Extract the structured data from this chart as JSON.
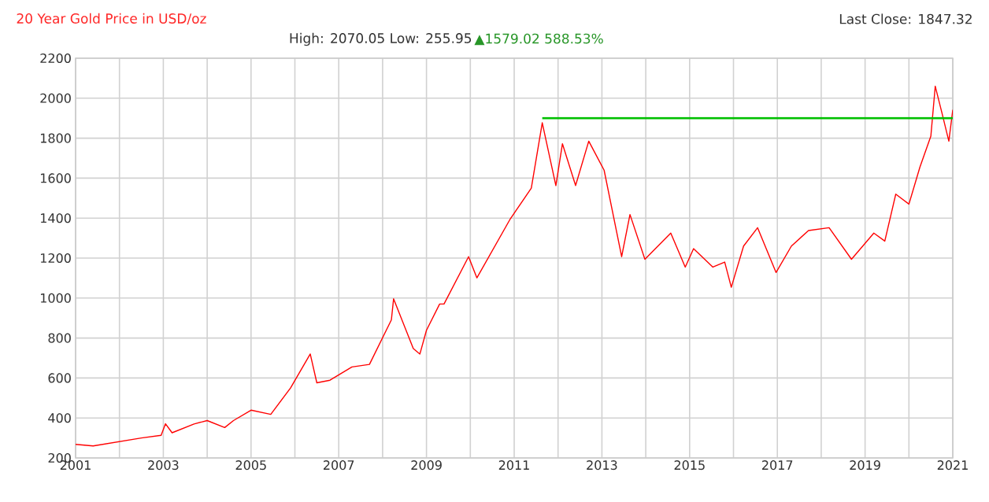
{
  "chart_data": {
    "type": "line",
    "title": "20 Year Gold Price in USD/oz",
    "annotations": [
      "High: 2070.05 Low: 255.95",
      "▲1579.02 588.53%",
      "Last Close: 1847.32"
    ],
    "x": [
      2001.0,
      2001.4,
      2002.5,
      2002.95,
      2003.05,
      2003.2,
      2003.7,
      2004.0,
      2004.4,
      2004.6,
      2005.0,
      2005.45,
      2005.9,
      2006.35,
      2006.5,
      2006.8,
      2007.3,
      2007.7,
      2008.2,
      2008.25,
      2008.7,
      2008.85,
      2009.0,
      2009.3,
      2009.4,
      2009.96,
      2010.15,
      2010.9,
      2011.39,
      2011.64,
      2011.95,
      2012.1,
      2012.4,
      2012.7,
      2013.05,
      2013.45,
      2013.64,
      2013.98,
      2014.57,
      2014.9,
      2015.09,
      2015.53,
      2015.8,
      2015.95,
      2016.23,
      2016.55,
      2016.97,
      2017.32,
      2017.71,
      2018.18,
      2018.69,
      2019.2,
      2019.45,
      2019.7,
      2020.0,
      2020.25,
      2020.5,
      2020.6,
      2020.75,
      2020.91,
      2021.0
    ],
    "series": [
      {
        "color": "#ff0000",
        "values": [
          268,
          260,
          300,
          313,
          371,
          326,
          370,
          387,
          352,
          387,
          439,
          418,
          550,
          720,
          576,
          589,
          655,
          668,
          891,
          996,
          747,
          720,
          839,
          970,
          970,
          1207,
          1101,
          1392,
          1550,
          1877,
          1563,
          1772,
          1563,
          1785,
          1640,
          1207,
          1418,
          1194,
          1325,
          1155,
          1247,
          1155,
          1180,
          1054,
          1260,
          1352,
          1128,
          1260,
          1338,
          1352,
          1194,
          1325,
          1285,
          1520,
          1470,
          1655,
          1810,
          2060,
          1929,
          1785,
          1942
        ]
      },
      {
        "color": "#00c000",
        "x": [
          2011.64,
          2021.0
        ],
        "values": [
          1900,
          1900
        ]
      }
    ],
    "xlim": [
      2001,
      2021
    ],
    "ylim": [
      200,
      2200
    ],
    "xticks": [
      2001,
      {
        "value": 2002,
        "label": null
      },
      2003,
      {
        "value": 2004,
        "label": null
      },
      2005,
      {
        "value": 2006,
        "label": null
      },
      2007,
      {
        "value": 2008,
        "label": null
      },
      2009,
      {
        "value": 2010,
        "label": null
      },
      2011,
      {
        "value": 2012,
        "label": null
      },
      2013,
      {
        "value": 2014,
        "label": null
      },
      2015,
      {
        "value": 2016,
        "label": null
      },
      2017,
      {
        "value": 2018,
        "label": null
      },
      2019,
      {
        "value": 2020,
        "label": null
      },
      2021
    ],
    "yticks": [
      200,
      400,
      600,
      800,
      1000,
      1200,
      1400,
      1600,
      1800,
      2000,
      2200
    ],
    "grid": true,
    "marker": "none",
    "line_style": "solid"
  }
}
